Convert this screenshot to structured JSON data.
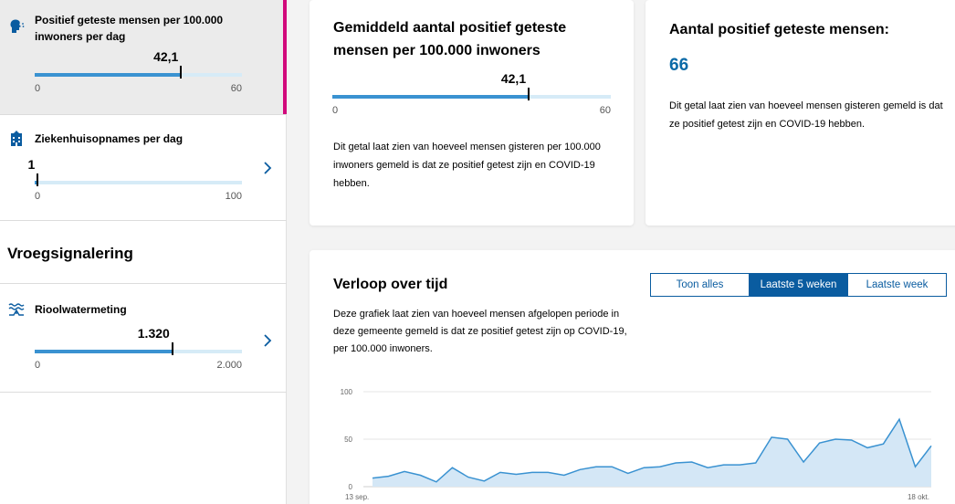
{
  "sidebar": {
    "items": [
      {
        "title": "Positief geteste mensen per 100.000 inwoners per dag",
        "value": "42,1",
        "fraction": 0.702,
        "min": "0",
        "max": "60"
      },
      {
        "title": "Ziekenhuisopnames per dag",
        "value": "1",
        "fraction": 0.01,
        "min": "0",
        "max": "100"
      },
      {
        "title": "Rioolwatermeting",
        "value": "1.320",
        "fraction": 0.66,
        "min": "0",
        "max": "2.000"
      }
    ],
    "section_heading": "Vroegsignalering"
  },
  "card_average": {
    "title": "Gemiddeld aantal positief geteste mensen per 100.000 inwoners",
    "value": "42,1",
    "fraction": 0.702,
    "min": "0",
    "max": "60",
    "description": "Dit getal laat zien van hoeveel mensen gisteren per 100.000 inwoners gemeld is dat ze positief getest zijn en COVID-19 hebben."
  },
  "card_total": {
    "title": "Aantal positief geteste mensen:",
    "value": "66",
    "description": "Dit getal laat zien van hoeveel mensen gisteren gemeld is dat ze positief getest zijn en COVID-19 hebben."
  },
  "card_chart": {
    "title": "Verloop over tijd",
    "description": "Deze grafiek laat zien van hoeveel mensen afgelopen periode in deze gemeente gemeld is dat ze positief getest zijn op COVID-19, per 100.000 inwoners.",
    "toggle": {
      "options": [
        "Toon alles",
        "Laatste 5 weken",
        "Laatste week"
      ],
      "selected": 1
    }
  },
  "colors": {
    "accent": "#0a5ca0",
    "bar": "#3a92d1",
    "bar_track": "#d6ebf7",
    "active_marker": "#d10a7c",
    "area_fill": "#d4e7f6",
    "line": "#3a92d1",
    "value_blue": "#0a6aa7"
  },
  "chart_data": {
    "type": "area",
    "x_start": "13 sep.",
    "x_end": "18 okt.",
    "ylim": [
      0,
      100
    ],
    "yticks": [
      "100",
      "50",
      "0"
    ],
    "values": [
      9,
      11,
      16,
      12,
      5,
      20,
      10,
      6,
      15,
      13,
      15,
      15,
      12,
      18,
      21,
      21,
      14,
      20,
      21,
      25,
      26,
      20,
      23,
      23,
      25,
      52,
      50,
      26,
      46,
      50,
      49,
      41,
      45,
      71,
      21,
      43
    ]
  }
}
